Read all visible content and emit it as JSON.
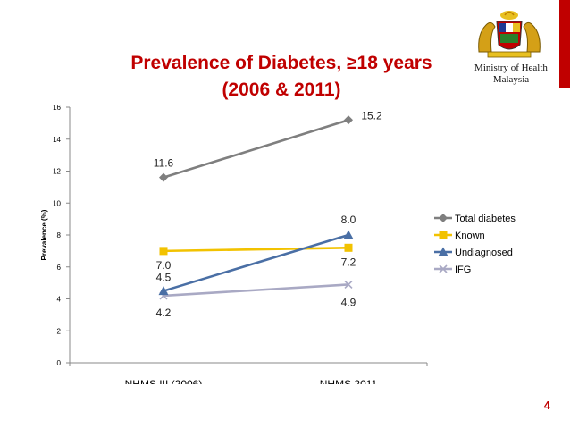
{
  "slide": {
    "title_line1": "Prevalence of Diabetes, ≥18 years",
    "title_line2": "(2006 & 2011)",
    "ministry_line1": "Ministry of Health",
    "ministry_line2": "Malaysia",
    "page_number": "4",
    "logo": "malaysia-coat-of-arms",
    "accent_color": "#c00000"
  },
  "chart_data": {
    "type": "line",
    "title": "Prevalence of Diabetes, ≥18 years (2006 & 2011)",
    "categories": [
      "NHMS III (2006)",
      "NHMS 2011"
    ],
    "ylabel": "Prevalence (%)",
    "xlabel": "",
    "ylim": [
      0,
      16
    ],
    "yticks": [
      0,
      2,
      4,
      6,
      8,
      10,
      12,
      14,
      16
    ],
    "grid": false,
    "legend": "right",
    "series": [
      {
        "name": "Total diabetes",
        "values": [
          11.6,
          15.2
        ],
        "labels": [
          "11.6",
          "15.2"
        ],
        "color": "#7f7f7f",
        "marker": "diamond"
      },
      {
        "name": "Known",
        "values": [
          7.0,
          7.2
        ],
        "labels": [
          "7.0",
          "7.2"
        ],
        "color": "#f2c200",
        "marker": "square"
      },
      {
        "name": "Undiagnosed",
        "values": [
          4.5,
          8.0
        ],
        "labels": [
          "4.5",
          "8.0"
        ],
        "color": "#4a6fa5",
        "marker": "triangle"
      },
      {
        "name": "IFG",
        "values": [
          4.2,
          4.9
        ],
        "labels": [
          "4.2",
          "4.9"
        ],
        "color": "#a9a9c4",
        "marker": "x"
      }
    ]
  }
}
